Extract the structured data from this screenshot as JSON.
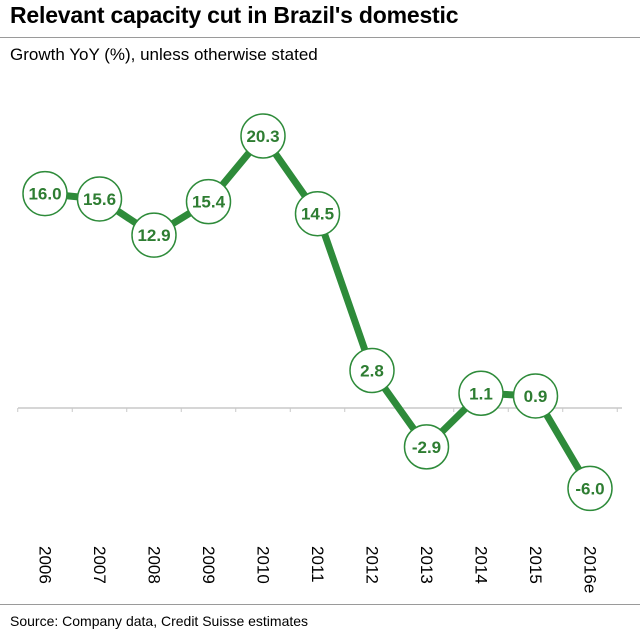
{
  "header": {
    "title": "Relevant capacity cut in Brazil's domestic",
    "subtitle": "Growth YoY (%), unless otherwise stated"
  },
  "footer": {
    "source": "Source: Company data, Credit Suisse estimates"
  },
  "colors": {
    "line": "#2e8b3a",
    "label_text": "#2e7d32",
    "marker_fill": "#ffffff",
    "zero_line": "#c8c8c8"
  },
  "chart_data": {
    "type": "line",
    "categories": [
      "2006",
      "2007",
      "2008",
      "2009",
      "2010",
      "2011",
      "2012",
      "2013",
      "2014",
      "2015",
      "2016e"
    ],
    "series": [
      {
        "values": [
          16.0,
          15.6,
          12.9,
          15.4,
          20.3,
          14.5,
          2.8,
          -2.9,
          1.1,
          0.9,
          -6.0
        ]
      }
    ],
    "data_labels": [
      "16.0",
      "15.6",
      "12.9",
      "15.4",
      "20.3",
      "14.5",
      "2.8",
      "-2.9",
      "1.1",
      "0.9",
      "-6.0"
    ],
    "title": "Relevant capacity cut in Brazil's domestic",
    "subtitle": "Growth YoY (%), unless otherwise stated",
    "xlabel": "",
    "ylabel": "",
    "ylim": [
      -6,
      21
    ],
    "grid": false,
    "legend": "none"
  }
}
